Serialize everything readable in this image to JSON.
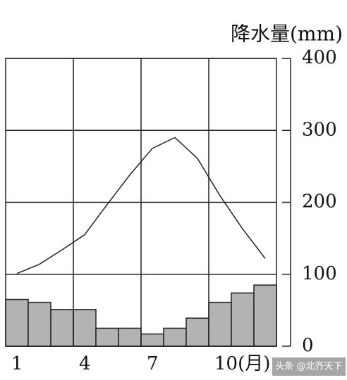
{
  "chart_data": {
    "type": "bar-line",
    "y_label": "降水量(mm)",
    "categories": [
      "1",
      null,
      null,
      "4",
      null,
      null,
      "7",
      null,
      null,
      "10(月)",
      null,
      null
    ],
    "bars": {
      "color": "#b3b3b3",
      "values": [
        65,
        61,
        51,
        51,
        25,
        25,
        17,
        25,
        39,
        61,
        74,
        85
      ]
    },
    "line": {
      "color": "#222222",
      "values": [
        101,
        114,
        134,
        155,
        197,
        238,
        275,
        290,
        261,
        209,
        163,
        122
      ]
    },
    "ylim": [
      0,
      400
    ],
    "yticks": [
      0,
      100,
      200,
      300,
      400
    ],
    "grid": true,
    "watermark": "头条 @北齐天下"
  }
}
